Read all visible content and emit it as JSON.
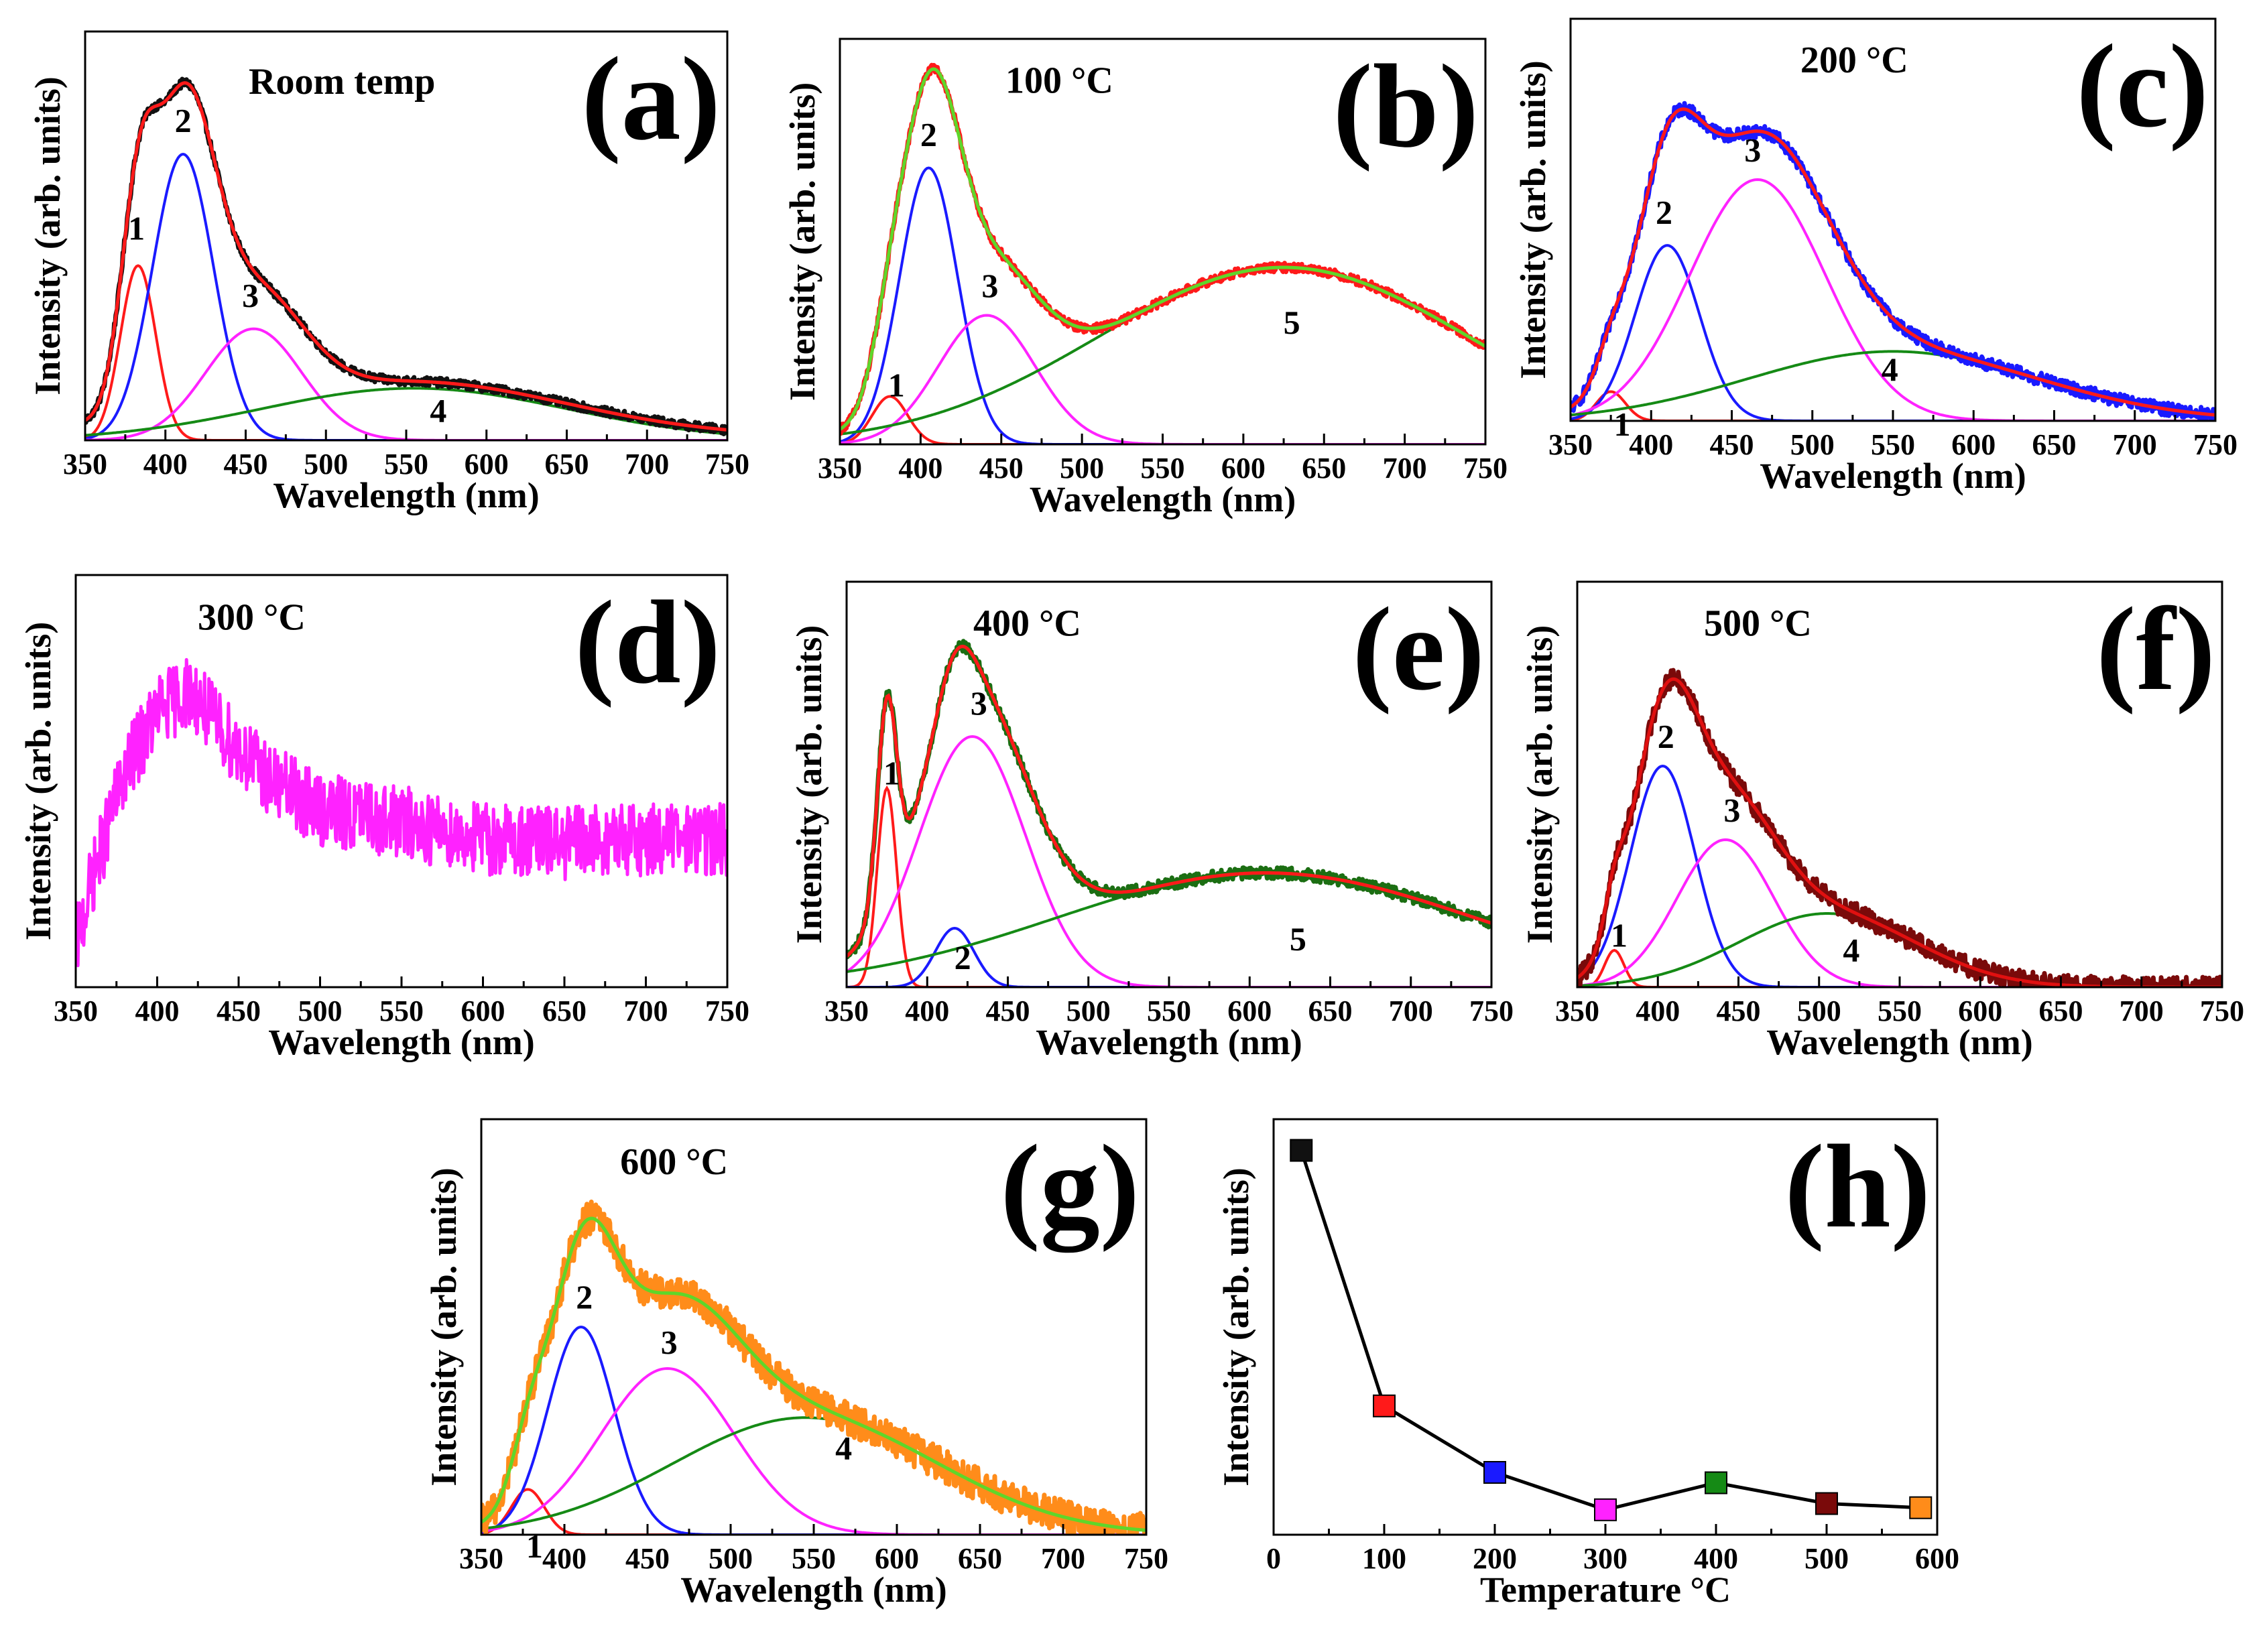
{
  "figure": {
    "colors": {
      "black": "#111111",
      "red": "#ff1a1a",
      "blue": "#1a1aff",
      "magenta": "#ff22ff",
      "green": "#158a15",
      "lime": "#5fd62a",
      "darkred": "#7a0a0a",
      "orange": "#ff8c1a",
      "darkgreen": "#1b6e12",
      "fit_red": "#e01010"
    }
  },
  "chart_data": [
    {
      "id": "a",
      "type": "line",
      "panel_label": "(a)",
      "title": "Room temp",
      "xlabel": "Wavelength (nm)",
      "ylabel": "Intensity (arb. units)",
      "xlim": [
        350,
        750
      ],
      "ylim": [
        0,
        1.1
      ],
      "xticks": [
        350,
        400,
        450,
        500,
        550,
        600,
        650,
        700,
        750
      ],
      "xtick_labels": [
        "350",
        "400",
        "450",
        "500",
        "550",
        "600",
        "650",
        "700",
        "750"
      ],
      "measured": {
        "color": "black",
        "noise": 0.012,
        "width": 7
      },
      "fit": {
        "color": "red"
      },
      "baseline": 0.03,
      "peaks": [
        {
          "name": "1",
          "center": 383,
          "amplitude": 0.47,
          "sigma": 11,
          "color": "red",
          "label_x": 382,
          "label_y": 0.54
        },
        {
          "name": "2",
          "center": 411,
          "amplitude": 0.77,
          "sigma": 19,
          "color": "blue",
          "label_x": 411,
          "label_y": 0.83
        },
        {
          "name": "3",
          "center": 455,
          "amplitude": 0.3,
          "sigma": 30,
          "color": "magenta",
          "label_x": 453,
          "label_y": 0.36
        },
        {
          "name": "4",
          "center": 555,
          "amplitude": 0.14,
          "sigma": 95,
          "color": "green",
          "label_x": 570,
          "label_y": 0.05
        }
      ]
    },
    {
      "id": "b",
      "type": "line",
      "panel_label": "(b)",
      "title": "100 °C",
      "xlabel": "Wavelength (nm)",
      "ylabel": "Intensity (arb. units)",
      "xlim": [
        350,
        750
      ],
      "ylim": [
        0,
        1.1
      ],
      "xticks": [
        350,
        400,
        450,
        500,
        550,
        600,
        650,
        700,
        750
      ],
      "xtick_labels": [
        "350",
        "400",
        "450",
        "500",
        "550",
        "600",
        "650",
        "700",
        "750"
      ],
      "measured": {
        "color": "red",
        "noise": 0.012,
        "width": 7
      },
      "fit": {
        "color": "lime"
      },
      "baseline": 0.0,
      "peaks": [
        {
          "name": "1",
          "center": 381,
          "amplitude": 0.13,
          "sigma": 11,
          "color": "red",
          "label_x": 385,
          "label_y": 0.13
        },
        {
          "name": "2",
          "center": 405,
          "amplitude": 0.75,
          "sigma": 18,
          "color": "blue",
          "label_x": 405,
          "label_y": 0.81
        },
        {
          "name": "3",
          "center": 441,
          "amplitude": 0.35,
          "sigma": 30,
          "color": "magenta",
          "label_x": 443,
          "label_y": 0.4
        },
        {
          "name": "5",
          "center": 625,
          "amplitude": 0.48,
          "sigma": 115,
          "color": "green",
          "label_x": 630,
          "label_y": 0.3
        }
      ]
    },
    {
      "id": "c",
      "type": "line",
      "panel_label": "(c)",
      "title": "200 °C",
      "xlabel": "Wavelength (nm)",
      "ylabel": "Intensity (arb. units)",
      "xlim": [
        350,
        750
      ],
      "ylim": [
        0,
        1.1
      ],
      "xticks": [
        350,
        400,
        450,
        500,
        550,
        600,
        650,
        700,
        750
      ],
      "xtick_labels": [
        "350",
        "400",
        "450",
        "500",
        "550",
        "600",
        "650",
        "700",
        "750"
      ],
      "measured": {
        "color": "blue",
        "noise": 0.018,
        "width": 7
      },
      "fit": {
        "color": "red"
      },
      "baseline": 0.0,
      "peaks": [
        {
          "name": "1",
          "center": 375,
          "amplitude": 0.08,
          "sigma": 9,
          "color": "red",
          "label_x": 382,
          "label_y": -0.04
        },
        {
          "name": "2",
          "center": 410,
          "amplitude": 0.48,
          "sigma": 20,
          "color": "blue",
          "label_x": 408,
          "label_y": 0.54
        },
        {
          "name": "3",
          "center": 466,
          "amplitude": 0.66,
          "sigma": 42,
          "color": "magenta",
          "label_x": 463,
          "label_y": 0.71
        },
        {
          "name": "4",
          "center": 550,
          "amplitude": 0.19,
          "sigma": 90,
          "color": "green",
          "label_x": 548,
          "label_y": 0.11
        }
      ]
    },
    {
      "id": "d",
      "type": "line",
      "panel_label": "(d)",
      "title": "300 °C",
      "xlabel": "Wavelength (nm)",
      "ylabel": "Intensity (arb. units)",
      "xlim": [
        350,
        750
      ],
      "ylim": [
        0,
        1.0
      ],
      "xticks": [
        350,
        400,
        450,
        500,
        550,
        600,
        650,
        700,
        750
      ],
      "xtick_labels": [
        "350",
        "400",
        "450",
        "500",
        "550",
        "600",
        "650",
        "700",
        "750"
      ],
      "measured": {
        "color": "magenta",
        "noise": 0.09,
        "width": 5
      },
      "fit": null,
      "baseline": 0.0,
      "envelope": [
        [
          350,
          0.1
        ],
        [
          360,
          0.26
        ],
        [
          380,
          0.52
        ],
        [
          400,
          0.67
        ],
        [
          420,
          0.72
        ],
        [
          440,
          0.62
        ],
        [
          470,
          0.5
        ],
        [
          500,
          0.43
        ],
        [
          550,
          0.4
        ],
        [
          600,
          0.36
        ],
        [
          650,
          0.35
        ],
        [
          700,
          0.36
        ],
        [
          750,
          0.36
        ]
      ],
      "peaks": []
    },
    {
      "id": "e",
      "type": "line",
      "panel_label": "(e)",
      "title": "400 °C",
      "xlabel": "Wavelength (nm)",
      "ylabel": "Intensity (arb. units)",
      "xlim": [
        350,
        750
      ],
      "ylim": [
        0,
        1.1
      ],
      "xticks": [
        350,
        400,
        450,
        500,
        550,
        600,
        650,
        700,
        750
      ],
      "xtick_labels": [
        "350",
        "400",
        "450",
        "500",
        "550",
        "600",
        "650",
        "700",
        "750"
      ],
      "measured": {
        "color": "darkgreen",
        "noise": 0.016,
        "width": 7
      },
      "fit": {
        "color": "red"
      },
      "baseline": 0.0,
      "peaks": [
        {
          "name": "1",
          "center": 375,
          "amplitude": 0.54,
          "sigma": 6,
          "color": "red",
          "label_x": 378,
          "label_y": 0.55
        },
        {
          "name": "2",
          "center": 417,
          "amplitude": 0.16,
          "sigma": 12,
          "color": "blue",
          "label_x": 422,
          "label_y": 0.05
        },
        {
          "name": "3",
          "center": 428,
          "amplitude": 0.68,
          "sigma": 33,
          "color": "magenta",
          "label_x": 432,
          "label_y": 0.74
        },
        {
          "name": "5",
          "center": 610,
          "amplitude": 0.31,
          "sigma": 130,
          "color": "green",
          "label_x": 630,
          "label_y": 0.1
        }
      ]
    },
    {
      "id": "f",
      "type": "line",
      "panel_label": "(f)",
      "title": "500 °C",
      "xlabel": "Wavelength (nm)",
      "ylabel": "Intensity (arb. units)",
      "xlim": [
        350,
        750
      ],
      "ylim": [
        0,
        1.1
      ],
      "xticks": [
        350,
        400,
        450,
        500,
        550,
        600,
        650,
        700,
        750
      ],
      "xtick_labels": [
        "350",
        "400",
        "450",
        "500",
        "550",
        "600",
        "650",
        "700",
        "750"
      ],
      "measured": {
        "color": "darkred",
        "noise": 0.028,
        "width": 7
      },
      "fit": {
        "color": "fit_red"
      },
      "baseline": 0.0,
      "peaks": [
        {
          "name": "1",
          "center": 373,
          "amplitude": 0.1,
          "sigma": 6,
          "color": "red",
          "label_x": 376,
          "label_y": 0.11
        },
        {
          "name": "2",
          "center": 403,
          "amplitude": 0.6,
          "sigma": 20,
          "color": "blue",
          "label_x": 405,
          "label_y": 0.65
        },
        {
          "name": "3",
          "center": 442,
          "amplitude": 0.4,
          "sigma": 30,
          "color": "magenta",
          "label_x": 446,
          "label_y": 0.45
        },
        {
          "name": "4",
          "center": 505,
          "amplitude": 0.2,
          "sigma": 55,
          "color": "green",
          "label_x": 520,
          "label_y": 0.07
        }
      ]
    },
    {
      "id": "g",
      "type": "line",
      "panel_label": "(g)",
      "title": "600 °C",
      "xlabel": "Wavelength (nm)",
      "ylabel": "Intensity (arb. units)",
      "xlim": [
        350,
        750
      ],
      "ylim": [
        0,
        1.1
      ],
      "xticks": [
        350,
        400,
        450,
        500,
        550,
        600,
        650,
        700,
        750
      ],
      "xtick_labels": [
        "350",
        "400",
        "450",
        "500",
        "550",
        "600",
        "650",
        "700",
        "750"
      ],
      "measured": {
        "color": "orange",
        "noise": 0.045,
        "width": 7
      },
      "fit": {
        "color": "lime"
      },
      "baseline": 0.0,
      "peaks": [
        {
          "name": "1",
          "center": 378,
          "amplitude": 0.12,
          "sigma": 10,
          "color": "red",
          "label_x": 382,
          "label_y": -0.06
        },
        {
          "name": "2",
          "center": 410,
          "amplitude": 0.55,
          "sigma": 20,
          "color": "blue",
          "label_x": 412,
          "label_y": 0.6
        },
        {
          "name": "3",
          "center": 462,
          "amplitude": 0.44,
          "sigma": 40,
          "color": "magenta",
          "label_x": 463,
          "label_y": 0.48
        },
        {
          "name": "4",
          "center": 545,
          "amplitude": 0.31,
          "sigma": 80,
          "color": "green",
          "label_x": 568,
          "label_y": 0.2
        }
      ]
    },
    {
      "id": "h",
      "type": "scatter",
      "panel_label": "(h)",
      "title": "",
      "xlabel": "Temperature °C",
      "ylabel": "Intensity (arb. units)",
      "xlim": [
        0,
        600
      ],
      "ylim": [
        0,
        1.0
      ],
      "xticks": [
        0,
        100,
        200,
        300,
        400,
        500,
        600
      ],
      "xtick_labels": [
        "0",
        "100",
        "200",
        "300",
        "400",
        "500",
        "600"
      ],
      "points": [
        {
          "x": 25,
          "y": 0.925,
          "color": "black"
        },
        {
          "x": 100,
          "y": 0.31,
          "color": "red"
        },
        {
          "x": 200,
          "y": 0.15,
          "color": "blue"
        },
        {
          "x": 300,
          "y": 0.06,
          "color": "magenta"
        },
        {
          "x": 400,
          "y": 0.125,
          "color": "green"
        },
        {
          "x": 500,
          "y": 0.075,
          "color": "darkred"
        },
        {
          "x": 585,
          "y": 0.065,
          "color": "orange"
        }
      ]
    }
  ]
}
